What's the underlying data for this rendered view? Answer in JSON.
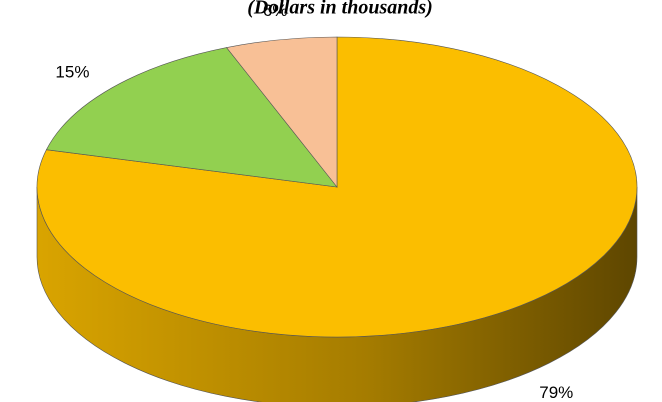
{
  "chart_data": {
    "type": "pie",
    "title": "(Dollars in thousands)",
    "categories": [
      null,
      null,
      null
    ],
    "values": [
      79,
      15,
      6
    ],
    "value_labels": [
      "79%",
      "15%",
      "6%"
    ],
    "colors": [
      "#fbbe00",
      "#92d050",
      "#f8c096"
    ]
  }
}
